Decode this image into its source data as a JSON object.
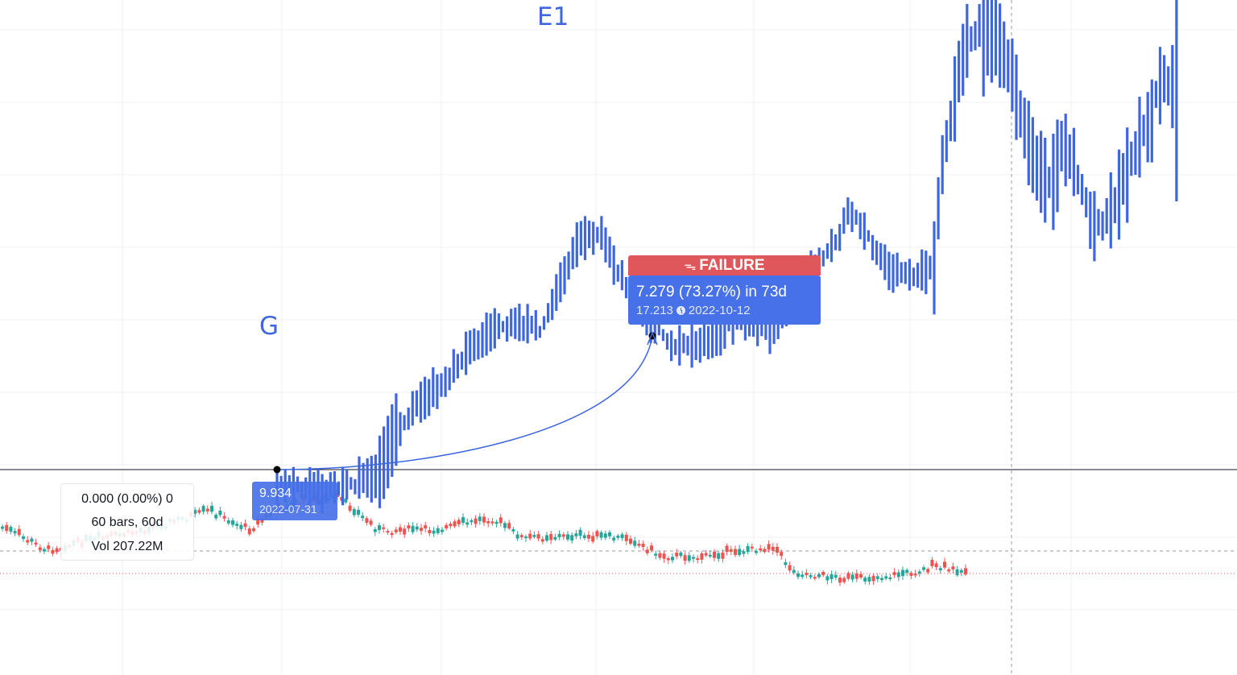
{
  "annotations": {
    "wave_g": "G",
    "wave_e1": "E1"
  },
  "anchor": {
    "value": "9.934",
    "date": "2022-07-31"
  },
  "projection": {
    "badge": "FAILURE",
    "badge_icon": "sad-face-icon",
    "change": "7.279 (73.27%) in 73d",
    "target": "17.213",
    "date": "2022-10-12"
  },
  "measure": {
    "line1": "0.000 (0.00%) 0",
    "line2": "60 bars, 60d",
    "line3": "Vol 207.22M"
  },
  "colors": {
    "projection_bars": "#3d66df",
    "candle_up": "#26a69a",
    "candle_down": "#ef5350",
    "failure": "#e0575b",
    "label_bg": "#4771e8"
  },
  "chart_data": {
    "type": "bar",
    "title": "",
    "xlabel": "",
    "ylabel": "",
    "projection_series": {
      "name": "",
      "style": "range-bars",
      "start_date": "2022-07-31",
      "start_value": 9.934,
      "end_date": "2022-10-12",
      "end_value": 17.213,
      "change": 7.279,
      "change_pct": 73.27,
      "days": 73,
      "outcome": "FAILURE"
    },
    "price_series": {
      "name": "",
      "style": "candlestick",
      "bars": 60,
      "days": 60,
      "volume": "207.22M"
    },
    "grid": true,
    "legend": "none"
  }
}
